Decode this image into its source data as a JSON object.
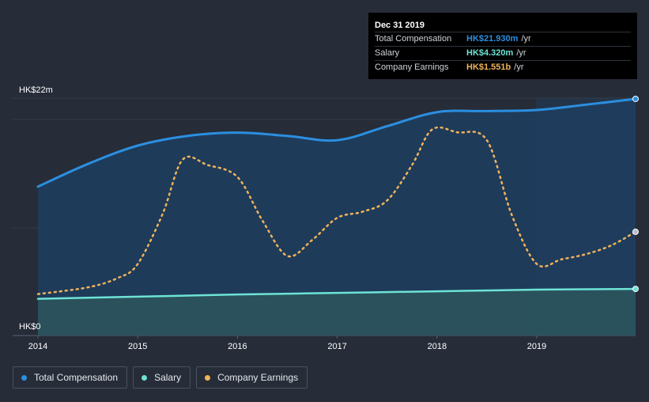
{
  "colors": {
    "total_compensation": "#2b8fe0",
    "salary": "#6de3d6",
    "company_earnings": "#f0b35a",
    "background": "#262c38"
  },
  "tooltip": {
    "date": "Dec 31 2019",
    "rows": [
      {
        "label": "Total Compensation",
        "value": "HK$21.930m",
        "unit": "/yr",
        "color_key": "total_compensation"
      },
      {
        "label": "Salary",
        "value": "HK$4.320m",
        "unit": "/yr",
        "color_key": "salary"
      },
      {
        "label": "Company Earnings",
        "value": "HK$1.551b",
        "unit": "/yr",
        "color_key": "company_earnings"
      }
    ]
  },
  "legend": [
    {
      "label": "Total Compensation",
      "color_key": "total_compensation"
    },
    {
      "label": "Salary",
      "color_key": "salary"
    },
    {
      "label": "Company Earnings",
      "color_key": "company_earnings"
    }
  ],
  "chart_data": {
    "type": "area",
    "title": "",
    "xlabel": "",
    "ylabel": "",
    "y_tick_labels": [
      "HK$0",
      "HK$22m"
    ],
    "x_tick_labels": [
      "2014",
      "2015",
      "2016",
      "2017",
      "2018",
      "2019"
    ],
    "xlim": [
      2014.0,
      2019.99
    ],
    "ylim": [
      0,
      22
    ],
    "grid": true,
    "legend_position": "bottom-left",
    "series": [
      {
        "name": "Total Compensation",
        "color_key": "total_compensation",
        "style": "solid-area",
        "unit": "HK$m",
        "x": [
          2014.0,
          2014.5,
          2015.0,
          2015.5,
          2016.0,
          2016.5,
          2017.0,
          2017.5,
          2018.0,
          2018.5,
          2019.0,
          2019.5,
          2019.99
        ],
        "y": [
          13.8,
          15.9,
          17.6,
          18.5,
          18.8,
          18.5,
          18.1,
          19.4,
          20.7,
          20.8,
          20.9,
          21.4,
          21.93
        ]
      },
      {
        "name": "Salary",
        "color_key": "salary",
        "style": "solid-area",
        "unit": "HK$m",
        "x": [
          2014.0,
          2015.0,
          2016.0,
          2017.0,
          2018.0,
          2019.0,
          2019.99
        ],
        "y": [
          3.4,
          3.6,
          3.8,
          3.95,
          4.1,
          4.25,
          4.32
        ]
      },
      {
        "name": "Company Earnings",
        "color_key": "company_earnings",
        "style": "dotted",
        "unit": "HK$b",
        "x": [
          2014.0,
          2014.5,
          2014.8,
          2015.0,
          2015.25,
          2015.45,
          2015.7,
          2016.0,
          2016.25,
          2016.5,
          2016.75,
          2017.0,
          2017.25,
          2017.5,
          2017.75,
          2017.95,
          2018.2,
          2018.5,
          2018.75,
          2019.0,
          2019.25,
          2019.5,
          2019.75,
          2019.99
        ],
        "y": [
          0.62,
          0.72,
          0.86,
          1.07,
          1.82,
          2.63,
          2.55,
          2.37,
          1.72,
          1.19,
          1.43,
          1.76,
          1.85,
          2.02,
          2.55,
          3.08,
          3.04,
          2.92,
          1.8,
          1.07,
          1.14,
          1.22,
          1.35,
          1.551
        ]
      }
    ]
  }
}
